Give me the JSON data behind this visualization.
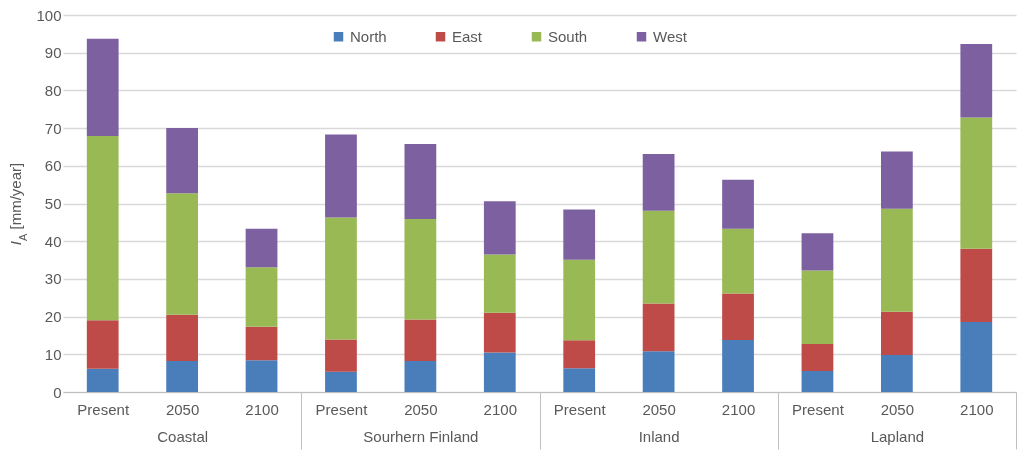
{
  "chart_data": {
    "type": "bar",
    "stacked": true,
    "ylabel": "I$_{A}$ [mm/year]",
    "categories": [
      "Present",
      "2050",
      "2100",
      "Present",
      "2050",
      "2100",
      "Present",
      "2050",
      "2100",
      "Present",
      "2050",
      "2100"
    ],
    "annotations": [
      "Coastal",
      "Sourhern Finland",
      "Inland",
      "Lapland"
    ],
    "series": [
      {
        "name": "North",
        "color": "#4a7ebb",
        "values": [
          6.2,
          8.2,
          8.4,
          5.4,
          8.2,
          10.5,
          6.3,
          10.8,
          13.8,
          5.6,
          9.8,
          18.6
        ]
      },
      {
        "name": "East",
        "color": "#be4b48",
        "values": [
          12.8,
          12.3,
          8.9,
          8.5,
          11.0,
          10.5,
          7.4,
          12.7,
          12.3,
          7.1,
          11.5,
          19.4
        ]
      },
      {
        "name": "South",
        "color": "#98b954",
        "values": [
          48.9,
          32.2,
          15.8,
          32.4,
          26.7,
          15.5,
          21.4,
          24.6,
          17.2,
          19.5,
          27.3,
          34.8
        ]
      },
      {
        "name": "West",
        "color": "#7d60a0",
        "values": [
          25.8,
          17.3,
          10.2,
          22.0,
          19.9,
          14.1,
          13.3,
          15.0,
          13.0,
          9.9,
          15.2,
          19.5
        ]
      }
    ],
    "ylim": [
      0,
      100
    ],
    "yticks": [
      0,
      10,
      20,
      30,
      40,
      50,
      60,
      70,
      80,
      90,
      100
    ],
    "grid": "y",
    "legend": "top"
  }
}
